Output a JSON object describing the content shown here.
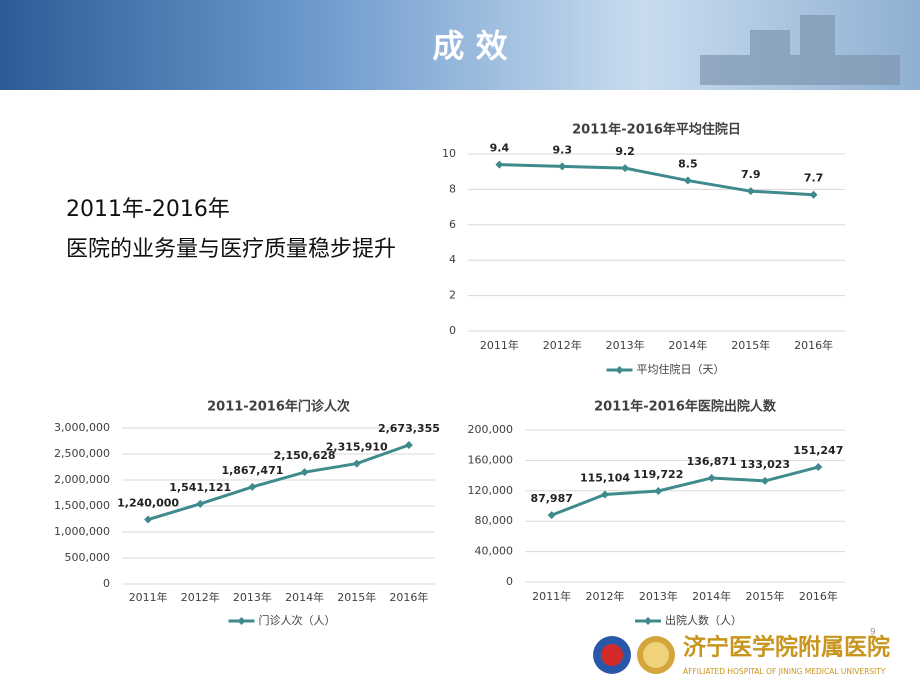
{
  "slide": {
    "title": "成 效",
    "subtitle_line1": "2011年-2016年",
    "subtitle_line2": "医院的业务量与医疗质量稳步提升",
    "page_number": "9",
    "logo_name": "济宁医学院附属医院",
    "logo_english": "AFFILIATED HOSPITAL OF JINING MEDICAL UNIVERSITY"
  },
  "chart_data": [
    {
      "type": "line",
      "title": "2011年-2016年平均住院日",
      "categories": [
        "2011年",
        "2012年",
        "2013年",
        "2014年",
        "2015年",
        "2016年"
      ],
      "series": [
        {
          "name": "平均住院日（天）",
          "color": "#3f8a8c",
          "values": [
            9.4,
            9.3,
            9.2,
            8.5,
            7.9,
            7.7
          ]
        }
      ],
      "ylim": [
        0,
        10
      ],
      "yticks": [
        0,
        2,
        4,
        6,
        8,
        10
      ],
      "grid": true,
      "legend": "bottom"
    },
    {
      "type": "line",
      "title": "2011-2016年门诊人次",
      "categories": [
        "2011年",
        "2012年",
        "2013年",
        "2014年",
        "2015年",
        "2016年"
      ],
      "series": [
        {
          "name": "门诊人次（人）",
          "color": "#3f8a8c",
          "values": [
            1240000,
            1541121,
            1867471,
            2150628,
            2315910,
            2673355
          ],
          "value_labels": [
            "1,240,000",
            "1,541,121",
            "1,867,471",
            "2,150,628",
            "2,315,910",
            "2,673,355"
          ]
        }
      ],
      "ylim": [
        0,
        3000000
      ],
      "yticks": [
        0,
        {
          "value": 500000,
          "label": "500,000"
        },
        {
          "value": 1000000,
          "label": "1,000,000"
        },
        {
          "value": 1500000,
          "label": "1,500,000"
        },
        {
          "value": 2000000,
          "label": "2,000,000"
        },
        {
          "value": 2500000,
          "label": "2,500,000"
        },
        {
          "value": 3000000,
          "label": "3,000,000"
        }
      ],
      "grid": true,
      "legend": "bottom"
    },
    {
      "type": "line",
      "title": "2011年-2016年医院出院人数",
      "categories": [
        "2011年",
        "2012年",
        "2013年",
        "2014年",
        "2015年",
        "2016年"
      ],
      "series": [
        {
          "name": "出院人数（人）",
          "color": "#3f8a8c",
          "values": [
            87987,
            115104,
            119722,
            136871,
            133023,
            151247
          ],
          "value_labels": [
            "87,987",
            "115,104",
            "119,722",
            "136,871",
            "133,023",
            "151,247"
          ]
        }
      ],
      "ylim": [
        0,
        200000
      ],
      "yticks": [
        0,
        {
          "value": 40000,
          "label": "40,000"
        },
        {
          "value": 80000,
          "label": "80,000"
        },
        {
          "value": 120000,
          "label": "120,000"
        },
        {
          "value": 160000,
          "label": "160,000"
        },
        {
          "value": 200000,
          "label": "200,000"
        }
      ],
      "grid": true,
      "legend": "bottom"
    }
  ]
}
